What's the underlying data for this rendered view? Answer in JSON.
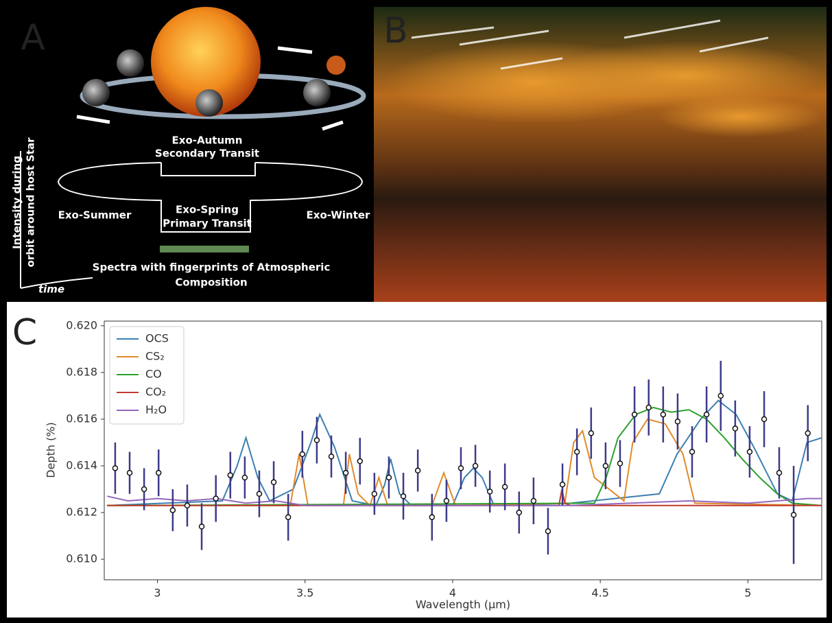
{
  "panels": [
    "A",
    "B",
    "C"
  ],
  "panel_a": {
    "top_label": [
      "Exo-Autumn",
      "Secondary Transit"
    ],
    "bottom_label": [
      "Exo-Spring",
      "Primary Transit"
    ],
    "left_label": "Exo-Summer",
    "right_label": "Exo-Winter",
    "spectra_label": [
      "Spectra with fingerprints of Atmospheric",
      "Composition"
    ],
    "y_axis_label": [
      "Intensity during",
      "orbit around host Star"
    ],
    "x_axis_label": "time"
  },
  "chart_data": {
    "type": "line",
    "xlabel": "Wavelength (μm)",
    "ylabel": "Depth (%)",
    "xlim": [
      2.82,
      5.25
    ],
    "ylim": [
      0.60912,
      0.6202
    ],
    "xticks": [
      3,
      3.5,
      4,
      4.5,
      5
    ],
    "yticks": [
      {
        "value": 0.61,
        "label": "0.610"
      },
      {
        "value": 0.612,
        "label": "0.612"
      },
      {
        "value": 0.614,
        "label": "0.614"
      },
      {
        "value": 0.616,
        "label": "0.616"
      },
      {
        "value": 0.618,
        "label": "0.618"
      },
      {
        "value": 0.62,
        "label": "0.620"
      }
    ],
    "legend": "upper left",
    "series": [
      {
        "name": "OCS",
        "color": "#3b7fb0",
        "x": [
          2.83,
          3.22,
          3.27,
          3.3,
          3.34,
          3.38,
          3.46,
          3.52,
          3.55,
          3.6,
          3.66,
          3.74,
          3.77,
          3.79,
          3.82,
          3.86,
          4.0,
          4.04,
          4.07,
          4.1,
          4.14,
          4.4,
          4.7,
          4.76,
          4.84,
          4.9,
          4.96,
          5.02,
          5.1,
          5.15,
          5.2,
          5.25
        ],
        "values": [
          0.6123,
          0.6125,
          0.614,
          0.6152,
          0.6135,
          0.6125,
          0.613,
          0.615,
          0.6162,
          0.6148,
          0.6125,
          0.6123,
          0.6132,
          0.6143,
          0.6128,
          0.6123,
          0.6123,
          0.6135,
          0.6139,
          0.6135,
          0.6123,
          0.6124,
          0.6128,
          0.6145,
          0.616,
          0.6168,
          0.6162,
          0.6148,
          0.6128,
          0.6125,
          0.615,
          0.6152
        ]
      },
      {
        "name": "CS₂",
        "color": "#e08a2a",
        "x": [
          2.83,
          3.45,
          3.48,
          3.51,
          3.55,
          3.63,
          3.65,
          3.68,
          3.72,
          3.75,
          3.78,
          3.93,
          3.97,
          4.01,
          4.38,
          4.41,
          4.44,
          4.48,
          4.58,
          4.61,
          4.66,
          4.72,
          4.78,
          4.82,
          5.25
        ],
        "values": [
          0.6123,
          0.6123,
          0.6145,
          0.6123,
          0.6123,
          0.6123,
          0.6145,
          0.6128,
          0.6123,
          0.6135,
          0.6123,
          0.6123,
          0.6137,
          0.6123,
          0.6124,
          0.615,
          0.6155,
          0.6135,
          0.6125,
          0.615,
          0.616,
          0.6158,
          0.6145,
          0.6124,
          0.6123
        ]
      },
      {
        "name": "CO",
        "color": "#2ca02c",
        "x": [
          2.83,
          4.48,
          4.52,
          4.56,
          4.62,
          4.68,
          4.74,
          4.8,
          4.86,
          4.92,
          4.98,
          5.04,
          5.1,
          5.15,
          5.25
        ],
        "values": [
          0.6123,
          0.6124,
          0.6135,
          0.6152,
          0.6162,
          0.6165,
          0.6163,
          0.6164,
          0.616,
          0.6152,
          0.6143,
          0.6135,
          0.6128,
          0.6124,
          0.6123
        ]
      },
      {
        "name": "CO₂",
        "color": "#c0392b",
        "x": [
          2.83,
          4.36,
          4.37,
          4.38,
          4.4,
          5.25
        ],
        "values": [
          0.6123,
          0.6123,
          0.613,
          0.6124,
          0.6123,
          0.6123
        ]
      },
      {
        "name": "H₂O",
        "color": "#9467bd",
        "x": [
          2.83,
          2.9,
          3.0,
          3.1,
          3.2,
          3.3,
          3.4,
          3.5,
          4.4,
          4.6,
          4.8,
          5.0,
          5.1,
          5.2,
          5.25
        ],
        "values": [
          0.6127,
          0.6125,
          0.6126,
          0.6125,
          0.6126,
          0.6124,
          0.6125,
          0.6123,
          0.6123,
          0.6124,
          0.6125,
          0.6124,
          0.6125,
          0.6126,
          0.6126
        ]
      }
    ],
    "points": {
      "color": "#3d3a8a",
      "x": [
        2.857,
        2.906,
        2.955,
        3.004,
        3.052,
        3.101,
        3.15,
        3.198,
        3.247,
        3.296,
        3.345,
        3.394,
        3.443,
        3.491,
        3.54,
        3.589,
        3.638,
        3.686,
        3.735,
        3.784,
        3.833,
        3.882,
        3.93,
        3.979,
        4.028,
        4.077,
        4.126,
        4.177,
        4.225,
        4.274,
        4.323,
        4.372,
        4.421,
        4.469,
        4.518,
        4.567,
        4.616,
        4.664,
        4.713,
        4.762,
        4.811,
        4.86,
        4.908,
        4.957,
        5.006,
        5.055,
        5.106,
        5.155,
        5.203
      ],
      "y": [
        0.6139,
        0.6137,
        0.613,
        0.6137,
        0.6121,
        0.6123,
        0.6114,
        0.6126,
        0.6136,
        0.6135,
        0.6128,
        0.6133,
        0.6118,
        0.6145,
        0.6151,
        0.6144,
        0.6137,
        0.6142,
        0.6128,
        0.6135,
        0.6127,
        0.6138,
        0.6118,
        0.6125,
        0.6139,
        0.614,
        0.6129,
        0.6131,
        0.612,
        0.6125,
        0.6112,
        0.6132,
        0.6146,
        0.6154,
        0.614,
        0.6141,
        0.6162,
        0.6165,
        0.6162,
        0.6159,
        0.6146,
        0.6162,
        0.617,
        0.6156,
        0.6146,
        0.616,
        0.6137,
        0.6119,
        0.6154
      ],
      "err": [
        0.0011,
        0.0009,
        0.0009,
        0.001,
        0.0009,
        0.0009,
        0.001,
        0.001,
        0.001,
        0.0009,
        0.001,
        0.0009,
        0.001,
        0.001,
        0.001,
        0.0009,
        0.0009,
        0.001,
        0.0009,
        0.0009,
        0.001,
        0.0009,
        0.001,
        0.0009,
        0.0009,
        0.0009,
        0.0009,
        0.001,
        0.0009,
        0.001,
        0.001,
        0.0009,
        0.001,
        0.0011,
        0.001,
        0.001,
        0.0012,
        0.0012,
        0.0012,
        0.0012,
        0.0011,
        0.0012,
        0.0015,
        0.0012,
        0.0011,
        0.0012,
        0.0011,
        0.0021,
        0.0012
      ]
    }
  }
}
